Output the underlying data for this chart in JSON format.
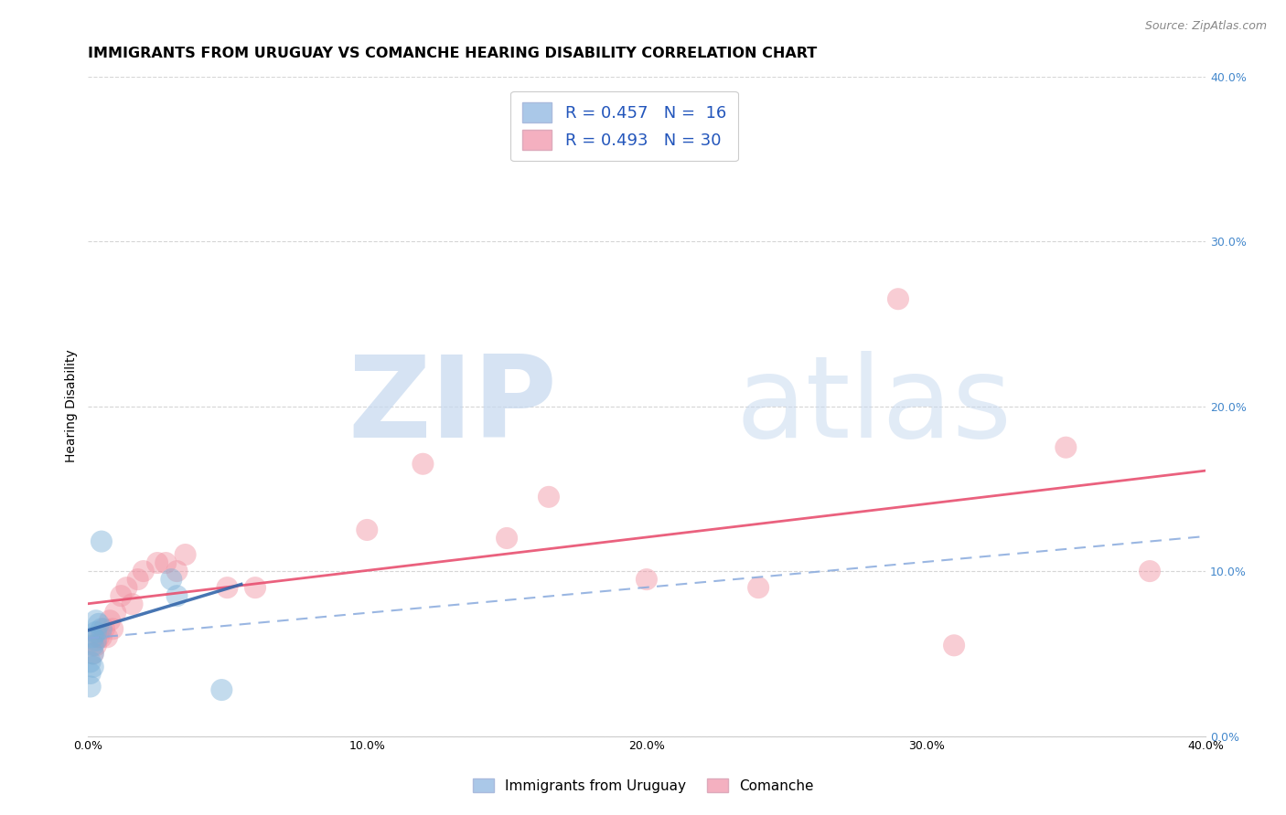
{
  "title": "IMMIGRANTS FROM URUGUAY VS COMANCHE HEARING DISABILITY CORRELATION CHART",
  "source": "Source: ZipAtlas.com",
  "ylabel": "Hearing Disability",
  "xlim": [
    0.0,
    0.4
  ],
  "ylim": [
    0.0,
    0.4
  ],
  "xtick_labels": [
    "0.0%",
    "",
    "10.0%",
    "",
    "20.0%",
    "",
    "30.0%",
    "",
    "40.0%"
  ],
  "xtick_vals": [
    0.0,
    0.05,
    0.1,
    0.15,
    0.2,
    0.25,
    0.3,
    0.35,
    0.4
  ],
  "ytick_vals": [
    0.0,
    0.1,
    0.2,
    0.3,
    0.4
  ],
  "ytick_labels_right": [
    "0.0%",
    "10.0%",
    "20.0%",
    "30.0%",
    "40.0%"
  ],
  "legend_label1": "R = 0.457   N =  16",
  "legend_label2": "R = 0.493   N = 30",
  "legend_color1": "#aac8e8",
  "legend_color2": "#f4b0c0",
  "background_color": "#ffffff",
  "grid_color": "#cccccc",
  "title_fontsize": 11.5,
  "source_fontsize": 9,
  "axis_label_fontsize": 10,
  "blue_color": "#7ab0d8",
  "pink_color": "#f090a0",
  "watermark_zip": "ZIP",
  "watermark_atlas": "atlas",
  "uruguay_x": [
    0.001,
    0.001,
    0.001,
    0.002,
    0.002,
    0.002,
    0.002,
    0.003,
    0.003,
    0.003,
    0.004,
    0.005,
    0.005,
    0.03,
    0.032,
    0.048
  ],
  "uruguay_y": [
    0.03,
    0.038,
    0.045,
    0.042,
    0.05,
    0.055,
    0.06,
    0.058,
    0.063,
    0.07,
    0.068,
    0.065,
    0.118,
    0.095,
    0.085,
    0.028
  ],
  "comanche_x": [
    0.002,
    0.003,
    0.004,
    0.005,
    0.006,
    0.007,
    0.008,
    0.009,
    0.01,
    0.012,
    0.014,
    0.016,
    0.018,
    0.02,
    0.025,
    0.028,
    0.032,
    0.035,
    0.05,
    0.06,
    0.1,
    0.12,
    0.15,
    0.165,
    0.2,
    0.24,
    0.29,
    0.31,
    0.35,
    0.38
  ],
  "comanche_y": [
    0.05,
    0.055,
    0.06,
    0.06,
    0.065,
    0.06,
    0.07,
    0.065,
    0.075,
    0.085,
    0.09,
    0.08,
    0.095,
    0.1,
    0.105,
    0.105,
    0.1,
    0.11,
    0.09,
    0.09,
    0.125,
    0.165,
    0.12,
    0.145,
    0.095,
    0.09,
    0.265,
    0.055,
    0.175,
    0.1
  ]
}
